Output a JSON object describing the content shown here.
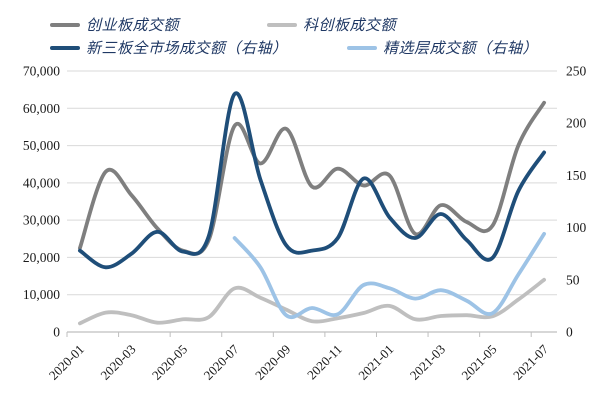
{
  "legend": {
    "items": [
      {
        "id": "chuangyeban",
        "label": "创业板成交额",
        "color": "#7f7f7f"
      },
      {
        "id": "kechuangban",
        "label": "科创板成交额",
        "color": "#bfbfbf"
      },
      {
        "id": "xinsanban",
        "label": "新三板全市场成交额（右轴）",
        "color": "#1f4e79"
      },
      {
        "id": "jingxuanceng",
        "label": "精选层成交额（右轴）",
        "color": "#9dc3e6"
      }
    ]
  },
  "axes": {
    "left_tick_labels": [
      "0",
      "10,000",
      "20,000",
      "30,000",
      "40,000",
      "50,000",
      "60,000",
      "70,000"
    ],
    "right_tick_labels": [
      "0",
      "50",
      "100",
      "150",
      "200",
      "250"
    ],
    "x_tick_labels": [
      "2020-01",
      "2020-03",
      "2020-05",
      "2020-07",
      "2020-09",
      "2020-11",
      "2021-01",
      "2021-03",
      "2021-05",
      "2021-07"
    ]
  },
  "chart_data": {
    "type": "line",
    "smoothing": "spline",
    "x_categories": [
      "2020-01",
      "2020-02",
      "2020-03",
      "2020-04",
      "2020-05",
      "2020-06",
      "2020-07",
      "2020-08",
      "2020-09",
      "2020-10",
      "2020-11",
      "2020-12",
      "2021-01",
      "2021-02",
      "2021-03",
      "2021-04",
      "2021-05",
      "2021-06",
      "2021-07"
    ],
    "x_label_every": 2,
    "left_axis": {
      "min": 0,
      "max": 70000,
      "step": 10000
    },
    "right_axis": {
      "min": 0,
      "max": 250,
      "step": 50
    },
    "grid": {
      "horizontal": true,
      "color": "#d9d9d9"
    },
    "axis_line_color": "#bfbfbf",
    "text_color": "#1a1a1a",
    "legend_position": "top",
    "series": [
      {
        "name": "创业板成交额",
        "axis": "left",
        "color": "#7f7f7f",
        "values": [
          22500,
          43000,
          36700,
          27800,
          21800,
          24700,
          55300,
          45200,
          54500,
          39000,
          43800,
          39300,
          42000,
          26300,
          34000,
          29500,
          28500,
          50000,
          61500
        ]
      },
      {
        "name": "科创板成交额",
        "axis": "left",
        "color": "#bfbfbf",
        "values": [
          2300,
          5200,
          4500,
          2500,
          3400,
          4000,
          11700,
          9200,
          6000,
          2900,
          3700,
          5100,
          7000,
          3400,
          4300,
          4500,
          4200,
          8700,
          14000
        ]
      },
      {
        "name": "新三板全市场成交额（右轴）",
        "axis": "right",
        "color": "#1f4e79",
        "values": [
          78,
          62,
          75,
          96,
          77,
          92,
          228,
          146,
          83,
          78,
          90,
          147,
          110,
          90,
          113,
          88,
          71,
          135,
          172
        ]
      },
      {
        "name": "精选层成交额（右轴）",
        "axis": "right",
        "color": "#9dc3e6",
        "values": [
          null,
          null,
          null,
          null,
          null,
          null,
          90,
          62,
          16,
          23,
          17,
          45,
          42,
          32,
          40,
          30,
          18,
          55,
          94
        ]
      }
    ]
  }
}
